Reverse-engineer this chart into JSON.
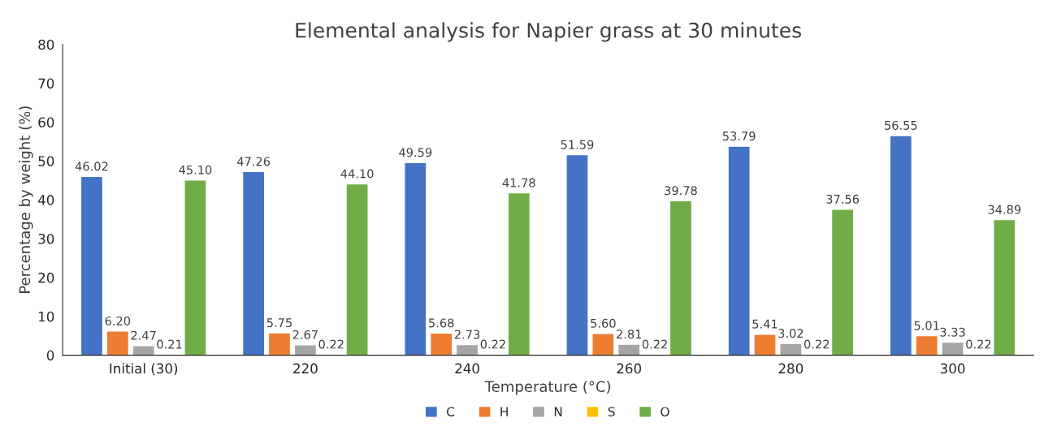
{
  "chart_data": {
    "type": "bar",
    "title": "Elemental analysis for Napier grass at 30 minutes",
    "xlabel": "Temperature (°C)",
    "ylabel": "Percentage by weight (%)",
    "categories": [
      "Initial (30)",
      "220",
      "240",
      "260",
      "280",
      "300"
    ],
    "series": [
      {
        "name": "C",
        "color": "#4472c4",
        "values": [
          46.02,
          47.26,
          49.59,
          51.59,
          53.79,
          56.55
        ],
        "value_labels": [
          "46.02",
          "47.26",
          "49.59",
          "51.59",
          "53.79",
          "56.55"
        ]
      },
      {
        "name": "H",
        "color": "#ed7d31",
        "values": [
          6.2,
          5.75,
          5.68,
          5.6,
          5.41,
          5.01
        ],
        "value_labels": [
          "6.20",
          "5.75",
          "5.68",
          "5.60",
          "5.41",
          "5.01"
        ]
      },
      {
        "name": "N",
        "color": "#a5a5a5",
        "values": [
          2.47,
          2.67,
          2.73,
          2.81,
          3.02,
          3.33
        ],
        "value_labels": [
          "2.47",
          "2.67",
          "2.73",
          "2.81",
          "3.02",
          "3.33"
        ]
      },
      {
        "name": "S",
        "color": "#ffc000",
        "values": [
          0.21,
          0.22,
          0.22,
          0.22,
          0.22,
          0.22
        ],
        "value_labels": [
          "0.21",
          "0.22",
          "0.22",
          "0.22",
          "0.22",
          "0.22"
        ]
      },
      {
        "name": "O",
        "color": "#70ad47",
        "values": [
          45.1,
          44.1,
          41.78,
          39.78,
          37.56,
          34.89
        ],
        "value_labels": [
          "45.10",
          "44.10",
          "41.78",
          "39.78",
          "37.56",
          "34.89"
        ]
      }
    ],
    "ylim": [
      0,
      80
    ],
    "yticks": [
      0,
      10,
      20,
      30,
      40,
      50,
      60,
      70,
      80
    ],
    "grid": false,
    "legend": "bottom"
  }
}
